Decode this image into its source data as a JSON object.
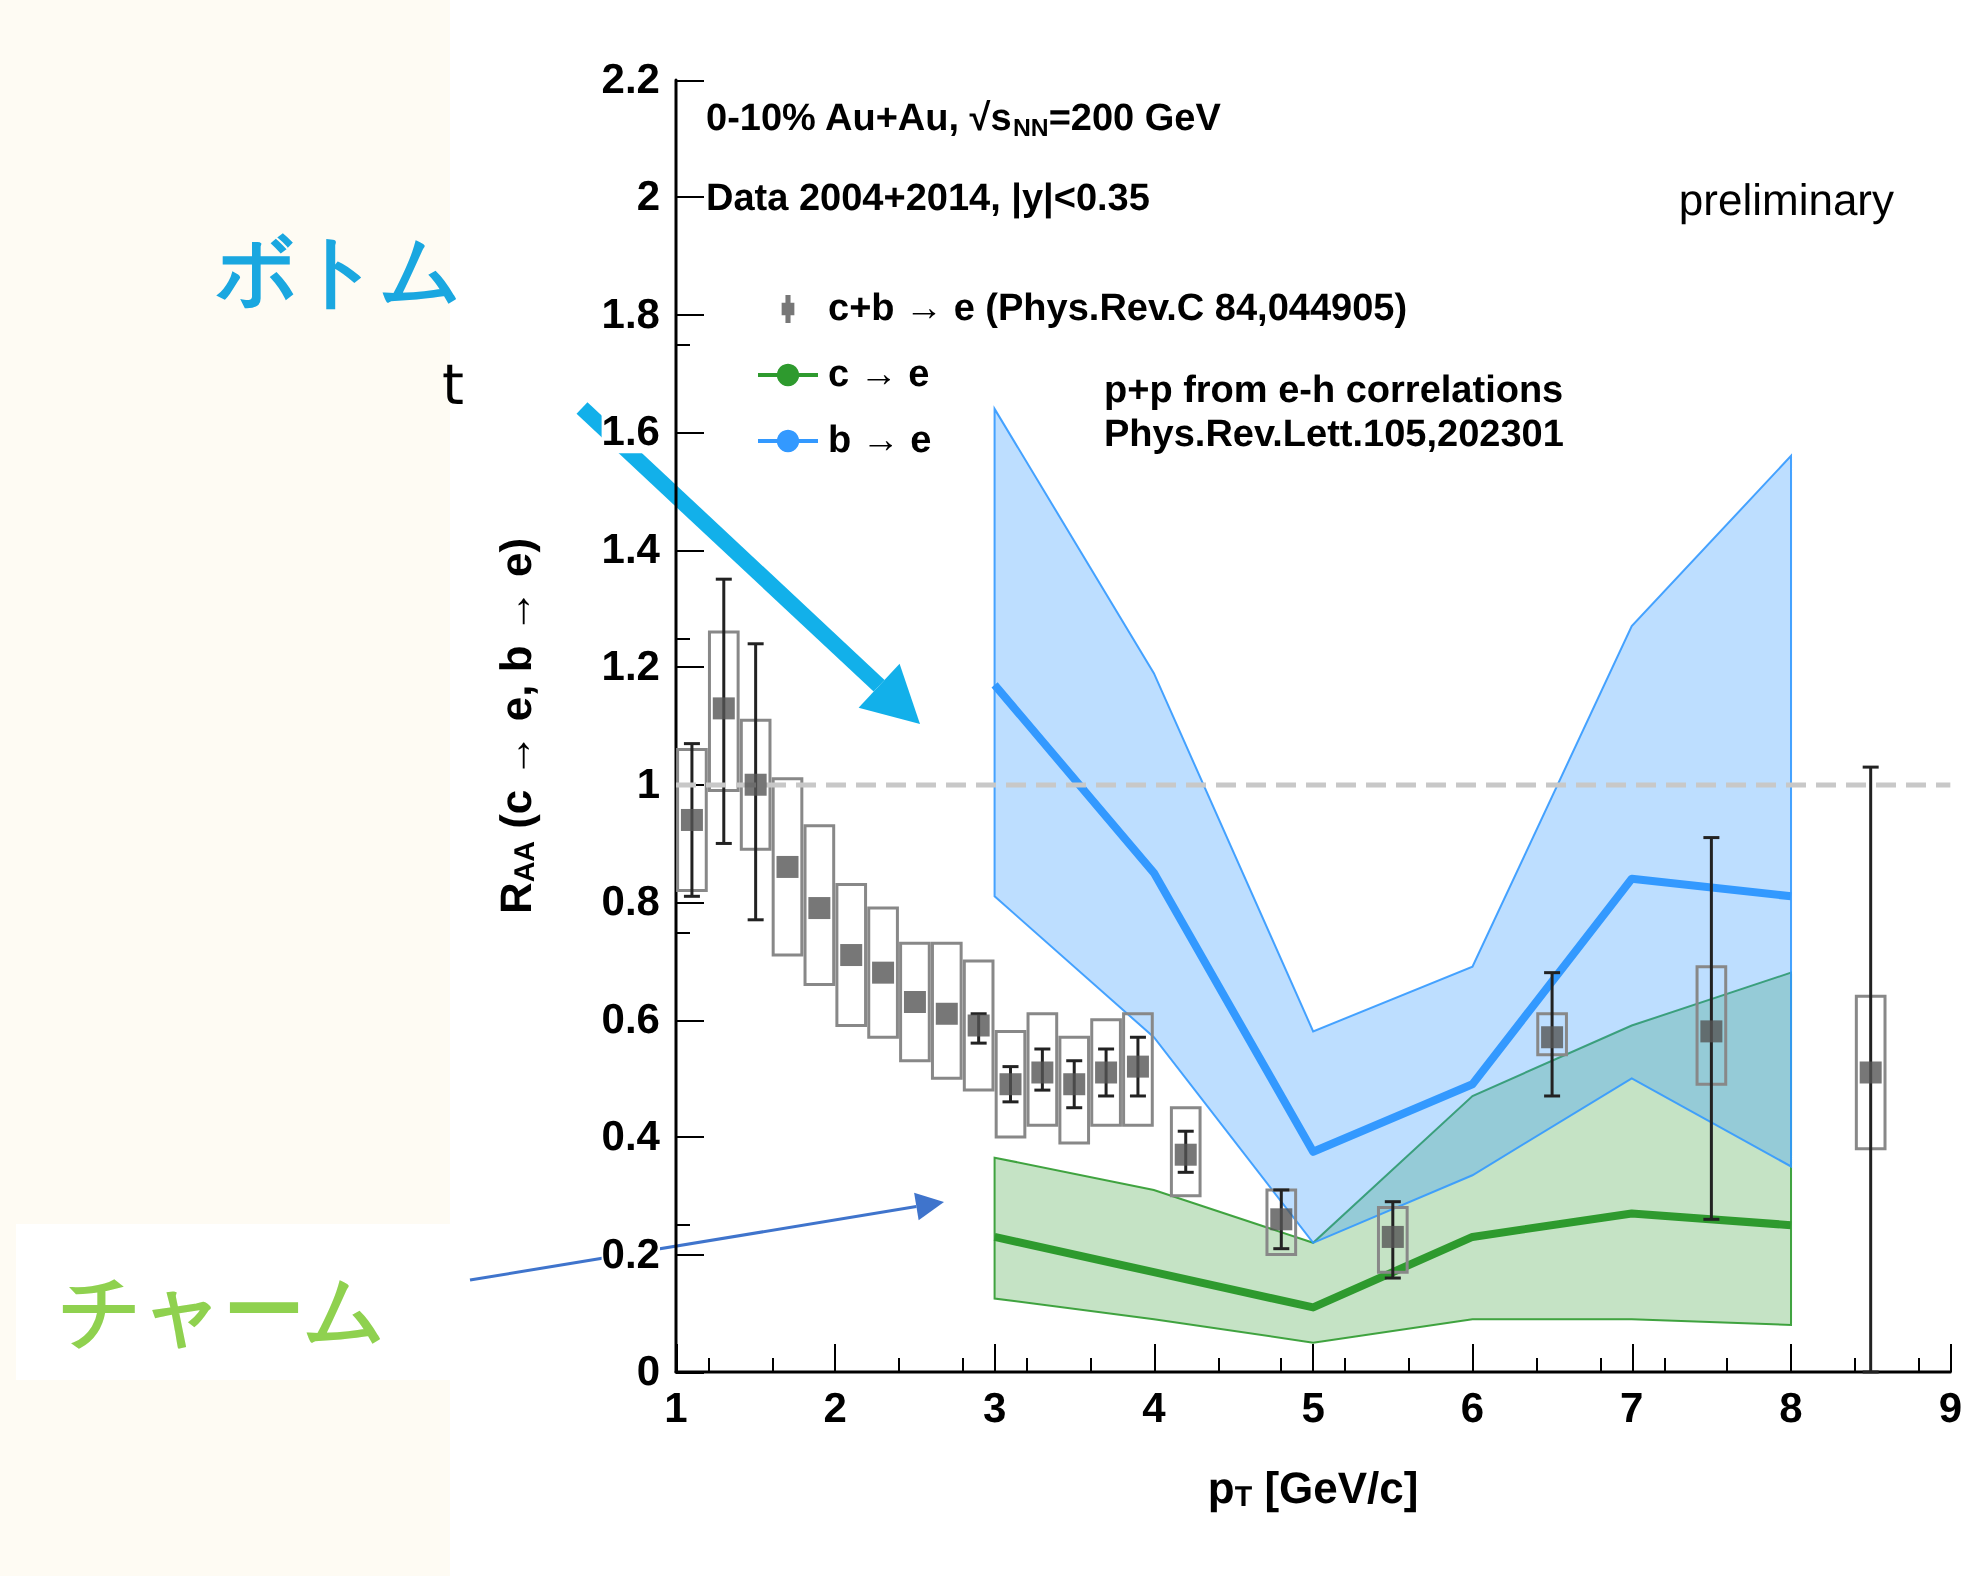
{
  "chart_data": {
    "type": "scatter",
    "xlabel": "p$_{T}$ [GeV/c]",
    "ylabel": "R$_{AA}$ (c → e, b → e)",
    "annotations": [
      "0-10% Au+Au, √s$_{NN}$=200 GeV",
      "Data 2004+2014, |y|<0.35",
      "p+p from e-h correlations",
      "Phys.Rev.Lett.105,202301",
      "preliminary",
      "ボトム",
      "t",
      "チャーム"
    ],
    "xlim": [
      1,
      9
    ],
    "xticks": [
      1,
      2,
      3,
      4,
      5,
      6,
      7,
      8,
      9
    ],
    "ylim": [
      0,
      2.2
    ],
    "yticks": [
      0,
      0.2,
      0.4,
      0.6,
      0.8,
      1,
      1.2,
      1.4,
      1.6,
      1.8,
      2,
      2.2
    ],
    "grid": false,
    "legend": "top left",
    "ref_lines": [
      {
        "axis": "y",
        "value": 1,
        "color": "#c8c8c8",
        "line_style": "dashed"
      }
    ],
    "series": [
      {
        "name": "c+b → e (Phys.Rev.C 84,044905)",
        "color": "#555555",
        "marker": "square",
        "x": [
          1.1,
          1.3,
          1.5,
          1.7,
          1.9,
          2.1,
          2.3,
          2.5,
          2.7,
          2.9,
          3.1,
          3.3,
          3.5,
          3.7,
          3.9,
          4.2,
          4.8,
          5.5,
          6.5,
          7.5,
          8.5
        ],
        "values": [
          0.94,
          1.13,
          1.0,
          0.86,
          0.79,
          0.71,
          0.68,
          0.63,
          0.61,
          0.59,
          0.49,
          0.51,
          0.49,
          0.51,
          0.52,
          0.37,
          0.26,
          0.23,
          0.57,
          0.58,
          0.51
        ],
        "errors": [
          [
            0.81,
            1.07
          ],
          [
            0.9,
            1.35
          ],
          [
            0.77,
            1.24
          ],
          null,
          null,
          null,
          null,
          null,
          null,
          [
            0.56,
            0.61
          ],
          [
            0.46,
            0.52
          ],
          [
            0.48,
            0.55
          ],
          [
            0.45,
            0.53
          ],
          [
            0.47,
            0.55
          ],
          [
            0.47,
            0.57
          ],
          [
            0.34,
            0.41
          ],
          [
            0.21,
            0.31
          ],
          [
            0.16,
            0.29
          ],
          [
            0.47,
            0.68
          ],
          [
            0.26,
            0.91
          ],
          [
            0,
            1.03
          ]
        ]
      },
      {
        "type": "bar",
        "color": "#888888",
        "x": [
          1.1,
          1.3,
          1.5,
          1.7,
          1.9,
          2.1,
          2.3,
          2.5,
          2.7,
          2.9,
          3.1,
          3.3,
          3.5,
          3.7,
          3.9,
          4.2,
          4.8,
          5.5,
          6.5,
          7.5,
          8.5
        ],
        "base": [
          0.82,
          0.99,
          0.89,
          0.71,
          0.66,
          0.59,
          0.57,
          0.53,
          0.5,
          0.48,
          0.4,
          0.42,
          0.39,
          0.42,
          0.42,
          0.3,
          0.2,
          0.17,
          0.54,
          0.49,
          0.38
        ],
        "values": [
          0.24,
          0.27,
          0.22,
          0.3,
          0.27,
          0.24,
          0.22,
          0.2,
          0.23,
          0.22,
          0.18,
          0.19,
          0.18,
          0.18,
          0.19,
          0.15,
          0.11,
          0.11,
          0.07,
          0.2,
          0.26
        ]
      },
      {
        "type": "line",
        "name": "c → e",
        "color": "#2e9a2e",
        "x": [
          3,
          4,
          5,
          6,
          7,
          8
        ],
        "values": [
          0.23,
          0.17,
          0.11,
          0.23,
          0.27,
          0.25
        ],
        "lower": [
          0.125,
          0.09,
          0.05,
          0.09,
          0.09,
          0.08
        ],
        "upper": [
          0.365,
          0.31,
          0.22,
          0.47,
          0.59,
          0.68
        ]
      },
      {
        "type": "line",
        "name": "b → e",
        "color": "#3399ff",
        "x": [
          3,
          4,
          5,
          6,
          7,
          8
        ],
        "values": [
          1.17,
          0.85,
          0.375,
          0.49,
          0.84,
          0.81
        ],
        "lower": [
          0.81,
          0.57,
          0.22,
          0.335,
          0.5,
          0.35
        ],
        "upper": [
          1.64,
          1.19,
          0.58,
          0.69,
          1.27,
          1.56
        ]
      }
    ]
  }
}
